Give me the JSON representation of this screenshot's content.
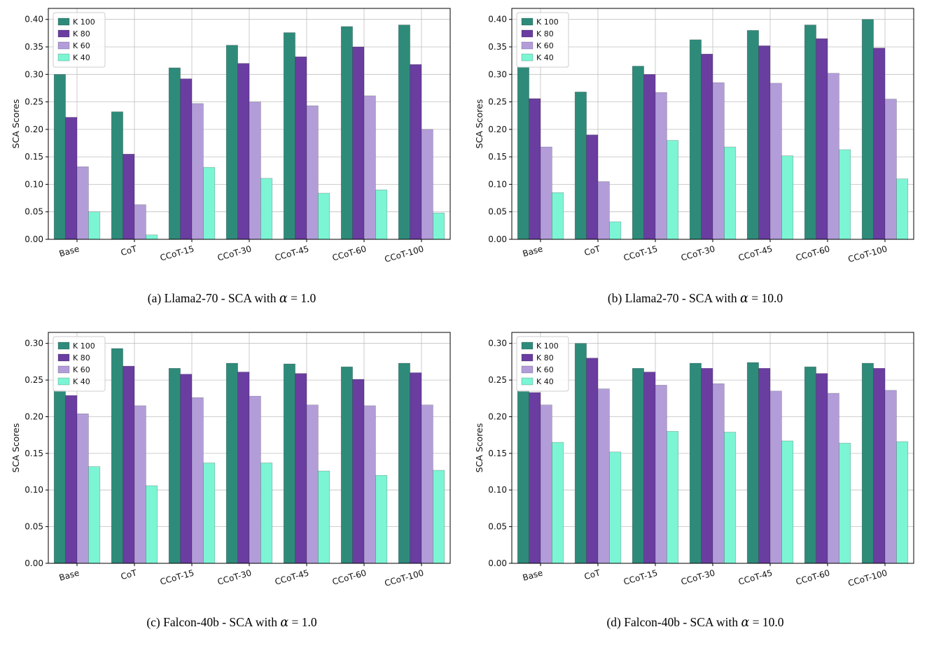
{
  "figure": {
    "background": "#ffffff",
    "panel_count": 4
  },
  "chart_data": [
    {
      "id": "a",
      "type": "bar",
      "caption": {
        "pre": "(a) Llama2-70 - SCA with ",
        "alpha": "α",
        "post": " = 1.0"
      },
      "ylabel": "SCA Scores",
      "categories": [
        "Base",
        "CoT",
        "CCoT-15",
        "CCoT-30",
        "CCoT-45",
        "CCoT-60",
        "CCoT-100"
      ],
      "yticks": [
        0,
        0.05,
        0.1,
        0.15,
        0.2,
        0.25,
        0.3,
        0.35,
        0.4
      ],
      "ylim": [
        0,
        0.42
      ],
      "grid": true,
      "legend_position": "upper left",
      "series": [
        {
          "name": "K 100",
          "color": "#2e8b7a",
          "values": [
            0.3,
            0.232,
            0.312,
            0.353,
            0.376,
            0.387,
            0.39
          ]
        },
        {
          "name": "K 80",
          "color": "#6a3da0",
          "values": [
            0.222,
            0.155,
            0.292,
            0.32,
            0.332,
            0.35,
            0.318
          ]
        },
        {
          "name": "K 60",
          "color": "#b29dd9",
          "values": [
            0.132,
            0.063,
            0.247,
            0.25,
            0.243,
            0.261,
            0.2
          ]
        },
        {
          "name": "K 40",
          "color": "#7cf5d4",
          "values": [
            0.05,
            0.008,
            0.131,
            0.111,
            0.084,
            0.09,
            0.048
          ]
        }
      ]
    },
    {
      "id": "b",
      "type": "bar",
      "caption": {
        "pre": "(b) Llama2-70 - SCA with ",
        "alpha": "α",
        "post": " = 10.0"
      },
      "ylabel": "SCA Scores",
      "categories": [
        "Base",
        "CoT",
        "CCoT-15",
        "CCoT-30",
        "CCoT-45",
        "CCoT-60",
        "CCoT-100"
      ],
      "yticks": [
        0,
        0.05,
        0.1,
        0.15,
        0.2,
        0.25,
        0.3,
        0.35,
        0.4
      ],
      "ylim": [
        0,
        0.42
      ],
      "grid": true,
      "legend_position": "upper left",
      "series": [
        {
          "name": "K 100",
          "color": "#2e8b7a",
          "values": [
            0.313,
            0.268,
            0.315,
            0.363,
            0.38,
            0.39,
            0.4
          ]
        },
        {
          "name": "K 80",
          "color": "#6a3da0",
          "values": [
            0.256,
            0.19,
            0.3,
            0.337,
            0.352,
            0.365,
            0.348
          ]
        },
        {
          "name": "K 60",
          "color": "#b29dd9",
          "values": [
            0.168,
            0.105,
            0.267,
            0.285,
            0.284,
            0.302,
            0.255
          ]
        },
        {
          "name": "K 40",
          "color": "#7cf5d4",
          "values": [
            0.085,
            0.032,
            0.18,
            0.168,
            0.152,
            0.163,
            0.11
          ]
        }
      ]
    },
    {
      "id": "c",
      "type": "bar",
      "caption": {
        "pre": "(c) Falcon-40b - SCA with ",
        "alpha": "α",
        "post": " = 1.0"
      },
      "ylabel": "SCA Scores",
      "categories": [
        "Base",
        "CoT",
        "CCoT-15",
        "CCoT-30",
        "CCoT-45",
        "CCoT-60",
        "CCoT-100"
      ],
      "yticks": [
        0,
        0.05,
        0.1,
        0.15,
        0.2,
        0.25,
        0.3
      ],
      "ylim": [
        0,
        0.315
      ],
      "grid": true,
      "legend_position": "upper left",
      "series": [
        {
          "name": "K 100",
          "color": "#2e8b7a",
          "values": [
            0.236,
            0.293,
            0.266,
            0.273,
            0.272,
            0.268,
            0.273
          ]
        },
        {
          "name": "K 80",
          "color": "#6a3da0",
          "values": [
            0.229,
            0.269,
            0.258,
            0.261,
            0.259,
            0.251,
            0.26
          ]
        },
        {
          "name": "K 60",
          "color": "#b29dd9",
          "values": [
            0.204,
            0.215,
            0.226,
            0.228,
            0.216,
            0.215,
            0.216
          ]
        },
        {
          "name": "K 40",
          "color": "#7cf5d4",
          "values": [
            0.132,
            0.106,
            0.137,
            0.137,
            0.126,
            0.12,
            0.127
          ]
        }
      ]
    },
    {
      "id": "d",
      "type": "bar",
      "caption": {
        "pre": "(d) Falcon-40b - SCA with ",
        "alpha": "α",
        "post": " = 10.0"
      },
      "ylabel": "SCA Scores",
      "categories": [
        "Base",
        "CoT",
        "CCoT-15",
        "CCoT-30",
        "CCoT-45",
        "CCoT-60",
        "CCoT-100"
      ],
      "yticks": [
        0,
        0.05,
        0.1,
        0.15,
        0.2,
        0.25,
        0.3
      ],
      "ylim": [
        0,
        0.315
      ],
      "grid": true,
      "legend_position": "upper left",
      "series": [
        {
          "name": "K 100",
          "color": "#2e8b7a",
          "values": [
            0.236,
            0.3,
            0.266,
            0.273,
            0.274,
            0.268,
            0.273
          ]
        },
        {
          "name": "K 80",
          "color": "#6a3da0",
          "values": [
            0.233,
            0.28,
            0.261,
            0.266,
            0.266,
            0.259,
            0.266
          ]
        },
        {
          "name": "K 60",
          "color": "#b29dd9",
          "values": [
            0.216,
            0.238,
            0.243,
            0.245,
            0.235,
            0.232,
            0.236
          ]
        },
        {
          "name": "K 40",
          "color": "#7cf5d4",
          "values": [
            0.165,
            0.152,
            0.18,
            0.179,
            0.167,
            0.164,
            0.166
          ]
        }
      ]
    }
  ]
}
